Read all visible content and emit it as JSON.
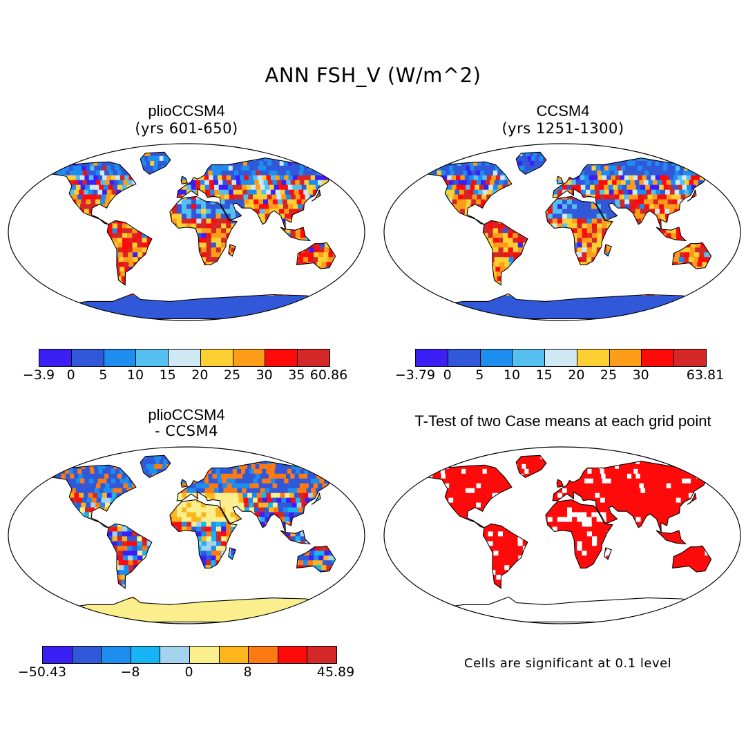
{
  "figure_title": "ANN FSH_V (W/m^2)",
  "panels": {
    "top_left": {
      "title": "plioCCSM4",
      "subtitle": "(yrs 601-650)"
    },
    "top_right": {
      "title": "CCSM4",
      "subtitle": "(yrs 1251-1300)"
    },
    "bottom_left": {
      "title": "plioCCSM4",
      "subtitle": "- CCSM4"
    },
    "bottom_right": {
      "title": "T-Test of two Case means at each grid point",
      "note": "Cells are significant at 0.1 level"
    }
  },
  "colorbars": {
    "top_left": {
      "colors": [
        "#3b1ff5",
        "#3158d9",
        "#1d8ef0",
        "#55bff0",
        "#cfe9f4",
        "#fdcf33",
        "#fd9d1a",
        "#ff0a0a",
        "#d42727"
      ],
      "labels": [
        "-3.9",
        "0",
        "5",
        "10",
        "15",
        "20",
        "25",
        "30",
        "35",
        "60.86"
      ]
    },
    "top_right": {
      "colors": [
        "#3b1ff5",
        "#3158d9",
        "#1d8ef0",
        "#55bff0",
        "#cfe9f4",
        "#fdcf33",
        "#fd9d1a",
        "#ff0a0a",
        "#d42727"
      ],
      "labels": [
        "-3.79",
        "0",
        "5",
        "10",
        "15",
        "20",
        "25",
        "30",
        "63.81"
      ]
    },
    "bottom_left": {
      "colors": [
        "#3b1ff5",
        "#3158d9",
        "#1d8ef0",
        "#17b5f5",
        "#a3d3ef",
        "#fbef8d",
        "#fdb51c",
        "#fd7a12",
        "#ff0a0a",
        "#d42727"
      ],
      "labels": [
        "-50.43",
        "-8",
        "0",
        "8",
        "45.89"
      ]
    }
  },
  "colors": {
    "antarctica_cold": "#3158d9",
    "antarctica_neutral": "#fbef8d",
    "significance_fill": "#ff0a0a"
  }
}
